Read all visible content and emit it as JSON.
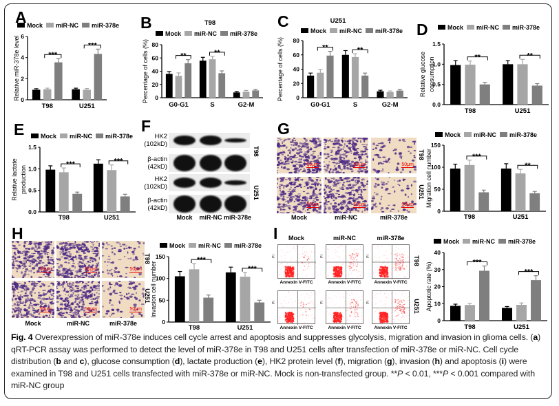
{
  "colors": {
    "mock": "#000000",
    "nc": "#a6a6a6",
    "mir": "#7f7f7f",
    "stain": "#4b2a86",
    "flow": "#ff2020",
    "scale": "#ee0000"
  },
  "panels": {
    "A": "A",
    "B": "B",
    "C": "C",
    "D": "D",
    "E": "E",
    "F": "F",
    "G": "G",
    "H": "H",
    "I": "I"
  },
  "groups": [
    "Mock",
    "miR-NC",
    "miR-378e"
  ],
  "cells": [
    "T98",
    "U251"
  ],
  "scale_bar": "50μm",
  "blot": {
    "rows": [
      {
        "name": "HK2",
        "size": "(102kD)"
      },
      {
        "name": "β-actin",
        "size": "(42kD)"
      },
      {
        "name": "HK2",
        "size": "(102kD)"
      },
      {
        "name": "β-actin",
        "size": "(42kD)"
      }
    ]
  },
  "flow": {
    "xlabel": "Annexin V-FITC",
    "ylabel": "PI"
  },
  "chart_data": [
    {
      "id": "A",
      "type": "bar",
      "title": "",
      "ylabel": "Relative miR-378e level",
      "categories": [
        "T98",
        "U251"
      ],
      "ylim": [
        0,
        6
      ],
      "yticks": [
        "0",
        "2",
        "4",
        "6"
      ],
      "legend": "top",
      "series": [
        {
          "name": "Mock",
          "values": [
            0.95,
            1.0
          ],
          "err": [
            0.1,
            0.1
          ]
        },
        {
          "name": "miR-NC",
          "values": [
            1.0,
            0.95
          ],
          "err": [
            0.1,
            0.12
          ]
        },
        {
          "name": "miR-378e",
          "values": [
            3.55,
            4.35
          ],
          "err": [
            0.35,
            0.45
          ]
        }
      ],
      "sig": [
        {
          "cat": 0,
          "from": 1,
          "to": 2,
          "label": "***"
        },
        {
          "cat": 1,
          "from": 1,
          "to": 2,
          "label": "***"
        }
      ]
    },
    {
      "id": "B",
      "type": "bar",
      "title": "T98",
      "ylabel": "Percentage of cells (%)",
      "categories": [
        "G0-G1",
        "S",
        "G2-M"
      ],
      "ylim": [
        0,
        80
      ],
      "yticks": [
        "0",
        "20",
        "40",
        "60",
        "80"
      ],
      "legend": "top",
      "series": [
        {
          "name": "Mock",
          "values": [
            36,
            56,
            8
          ],
          "err": [
            3.5,
            5,
            1.5
          ]
        },
        {
          "name": "miR-NC",
          "values": [
            33,
            58,
            9
          ],
          "err": [
            4.5,
            4.5,
            2
          ]
        },
        {
          "name": "miR-378e",
          "values": [
            52,
            37,
            11
          ],
          "err": [
            5.5,
            3.5,
            1.5
          ]
        }
      ],
      "sig": [
        {
          "cat": 0,
          "from": 1,
          "to": 2,
          "label": "**"
        },
        {
          "cat": 1,
          "from": 1,
          "to": 2,
          "label": "**"
        }
      ]
    },
    {
      "id": "C",
      "type": "bar",
      "title": "U251",
      "ylabel": "Percentage of  cells (%)",
      "categories": [
        "G0-G1",
        "S",
        "G2-M"
      ],
      "ylim": [
        0,
        80
      ],
      "yticks": [
        "0",
        "20",
        "40",
        "60",
        "80"
      ],
      "legend": "top",
      "series": [
        {
          "name": "Mock",
          "values": [
            31,
            60,
            9
          ],
          "err": [
            3.5,
            6,
            1.5
          ]
        },
        {
          "name": "miR-NC",
          "values": [
            35,
            57,
            8
          ],
          "err": [
            4.5,
            4.5,
            1.5
          ]
        },
        {
          "name": "miR-378e",
          "values": [
            59,
            31,
            10
          ],
          "err": [
            6,
            3.5,
            1.5
          ]
        }
      ],
      "sig": [
        {
          "cat": 0,
          "from": 1,
          "to": 2,
          "label": "**"
        },
        {
          "cat": 1,
          "from": 1,
          "to": 2,
          "label": "**"
        }
      ]
    },
    {
      "id": "D",
      "type": "bar",
      "title": "",
      "ylabel": [
        "Relative glucose",
        "consumption"
      ],
      "categories": [
        "T98",
        "U251"
      ],
      "ylim": [
        0,
        1.5
      ],
      "yticks": [
        "0.0",
        "0.5",
        "1.0",
        "1.5"
      ],
      "legend": "top",
      "series": [
        {
          "name": "Mock",
          "values": [
            0.98,
            1.0
          ],
          "err": [
            0.11,
            0.09
          ]
        },
        {
          "name": "miR-NC",
          "values": [
            0.99,
            1.0
          ],
          "err": [
            0.09,
            0.12
          ]
        },
        {
          "name": "miR-378e",
          "values": [
            0.5,
            0.47
          ],
          "err": [
            0.05,
            0.05
          ]
        }
      ],
      "sig": [
        {
          "cat": 0,
          "from": 1,
          "to": 2,
          "label": "**"
        },
        {
          "cat": 1,
          "from": 1,
          "to": 2,
          "label": "**"
        }
      ]
    },
    {
      "id": "E",
      "type": "bar",
      "title": "",
      "ylabel": [
        "Relative lactate",
        "production"
      ],
      "categories": [
        "T98",
        "U251"
      ],
      "ylim": [
        0,
        1.5
      ],
      "yticks": [
        "0.0",
        "0.5",
        "1.0",
        "1.5"
      ],
      "legend": "top",
      "series": [
        {
          "name": "Mock",
          "values": [
            0.98,
            1.12
          ],
          "err": [
            0.09,
            0.09
          ]
        },
        {
          "name": "miR-NC",
          "values": [
            0.92,
            0.97
          ],
          "err": [
            0.1,
            0.12
          ]
        },
        {
          "name": "miR-378e",
          "values": [
            0.42,
            0.36
          ],
          "err": [
            0.04,
            0.05
          ]
        }
      ],
      "sig": [
        {
          "cat": 0,
          "from": 1,
          "to": 2,
          "label": "***"
        },
        {
          "cat": 1,
          "from": 1,
          "to": 2,
          "label": "***"
        }
      ]
    },
    {
      "id": "G",
      "type": "bar",
      "title": "",
      "ylabel": "Migration cell number",
      "categories": [
        "T98",
        "U251"
      ],
      "ylim": [
        0,
        150
      ],
      "yticks": [
        "0",
        "50",
        "100",
        "150"
      ],
      "legend": "top",
      "series": [
        {
          "name": "Mock",
          "values": [
            97,
            97
          ],
          "err": [
            10,
            11
          ]
        },
        {
          "name": "miR-NC",
          "values": [
            105,
            86
          ],
          "err": [
            11,
            9
          ]
        },
        {
          "name": "miR-378e",
          "values": [
            43,
            41
          ],
          "err": [
            5,
            4
          ]
        }
      ],
      "sig": [
        {
          "cat": 0,
          "from": 1,
          "to": 2,
          "label": "***"
        },
        {
          "cat": 1,
          "from": 1,
          "to": 2,
          "label": "**"
        }
      ]
    },
    {
      "id": "H",
      "type": "bar",
      "title": "",
      "ylabel": "Invasion cell number",
      "categories": [
        "T98",
        "U251"
      ],
      "ylim": [
        0,
        150
      ],
      "yticks": [
        "0",
        "50",
        "100",
        "150"
      ],
      "legend": "top",
      "series": [
        {
          "name": "Mock",
          "values": [
            105,
            114
          ],
          "err": [
            11,
            12
          ]
        },
        {
          "name": "miR-NC",
          "values": [
            121,
            104
          ],
          "err": [
            13,
            10
          ]
        },
        {
          "name": "miR-378e",
          "values": [
            56,
            45
          ],
          "err": [
            6,
            5
          ]
        }
      ],
      "sig": [
        {
          "cat": 0,
          "from": 1,
          "to": 2,
          "label": "***"
        },
        {
          "cat": 1,
          "from": 1,
          "to": 2,
          "label": "***"
        }
      ]
    },
    {
      "id": "I",
      "type": "bar",
      "title": "",
      "ylabel": "Apoptotic rate (%)",
      "categories": [
        "T98",
        "U251"
      ],
      "ylim": [
        0,
        40
      ],
      "yticks": [
        "0",
        "10",
        "20",
        "30",
        "40"
      ],
      "legend": "top",
      "series": [
        {
          "name": "Mock",
          "values": [
            8.7,
            7.5
          ],
          "err": [
            1,
            0.8
          ]
        },
        {
          "name": "miR-NC",
          "values": [
            9.2,
            9.3
          ],
          "err": [
            1,
            1.1
          ]
        },
        {
          "name": "miR-378e",
          "values": [
            29.3,
            23.8
          ],
          "err": [
            2.8,
            2.6
          ]
        }
      ],
      "sig": [
        {
          "cat": 0,
          "from": 1,
          "to": 2,
          "label": "***"
        },
        {
          "cat": 1,
          "from": 1,
          "to": 2,
          "label": "***"
        }
      ]
    }
  ],
  "caption": [
    {
      "t": "Fig. 4",
      "b": true
    },
    {
      "t": " Overexpression of miR-378e induces cell cycle arrest and apoptosis and suppresses glycolysis, migration and invasion in glioma cells. ("
    },
    {
      "t": "a",
      "b": true
    },
    {
      "t": ") qRT-PCR assay was performed to detect the level of miR-378e in T98 and U251 cells after transfection of miR-378e or miR-NC. Cell cycle distribution ("
    },
    {
      "t": "b",
      "b": true
    },
    {
      "t": " and "
    },
    {
      "t": "c",
      "b": true
    },
    {
      "t": "), glucose consumption ("
    },
    {
      "t": "d",
      "b": true
    },
    {
      "t": "), lactate production ("
    },
    {
      "t": "e",
      "b": true
    },
    {
      "t": "), HK2 protein level ("
    },
    {
      "t": "f",
      "b": true
    },
    {
      "t": "), migration ("
    },
    {
      "t": "g",
      "b": true
    },
    {
      "t": "), invasion ("
    },
    {
      "t": "h",
      "b": true
    },
    {
      "t": ") and apoptosis ("
    },
    {
      "t": "i",
      "b": true
    },
    {
      "t": ") were examined in T98 and U251 cells transfected with miR-378e or miR-NC. Mock is non-transfected group. **"
    },
    {
      "t": "P",
      "i": true
    },
    {
      "t": " < 0.01, ***"
    },
    {
      "t": "P",
      "i": true
    },
    {
      "t": " < 0.001 compared with miR-NC group"
    }
  ]
}
